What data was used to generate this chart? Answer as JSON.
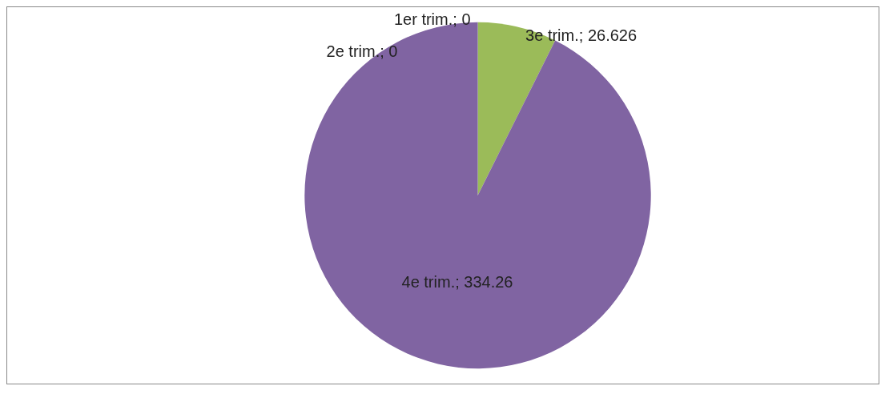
{
  "chart_data": {
    "type": "pie",
    "categories": [
      "1er trim.",
      "2e trim.",
      "3e trim.",
      "4e trim."
    ],
    "values": [
      0,
      0,
      26.626,
      334.26
    ],
    "colors": [
      "#4f81bd",
      "#c0504d",
      "#9bbb59",
      "#8064a2"
    ],
    "value_labels": [
      "; 0",
      "; 0",
      "; 26.626",
      "; 334.26"
    ],
    "legend": false
  }
}
